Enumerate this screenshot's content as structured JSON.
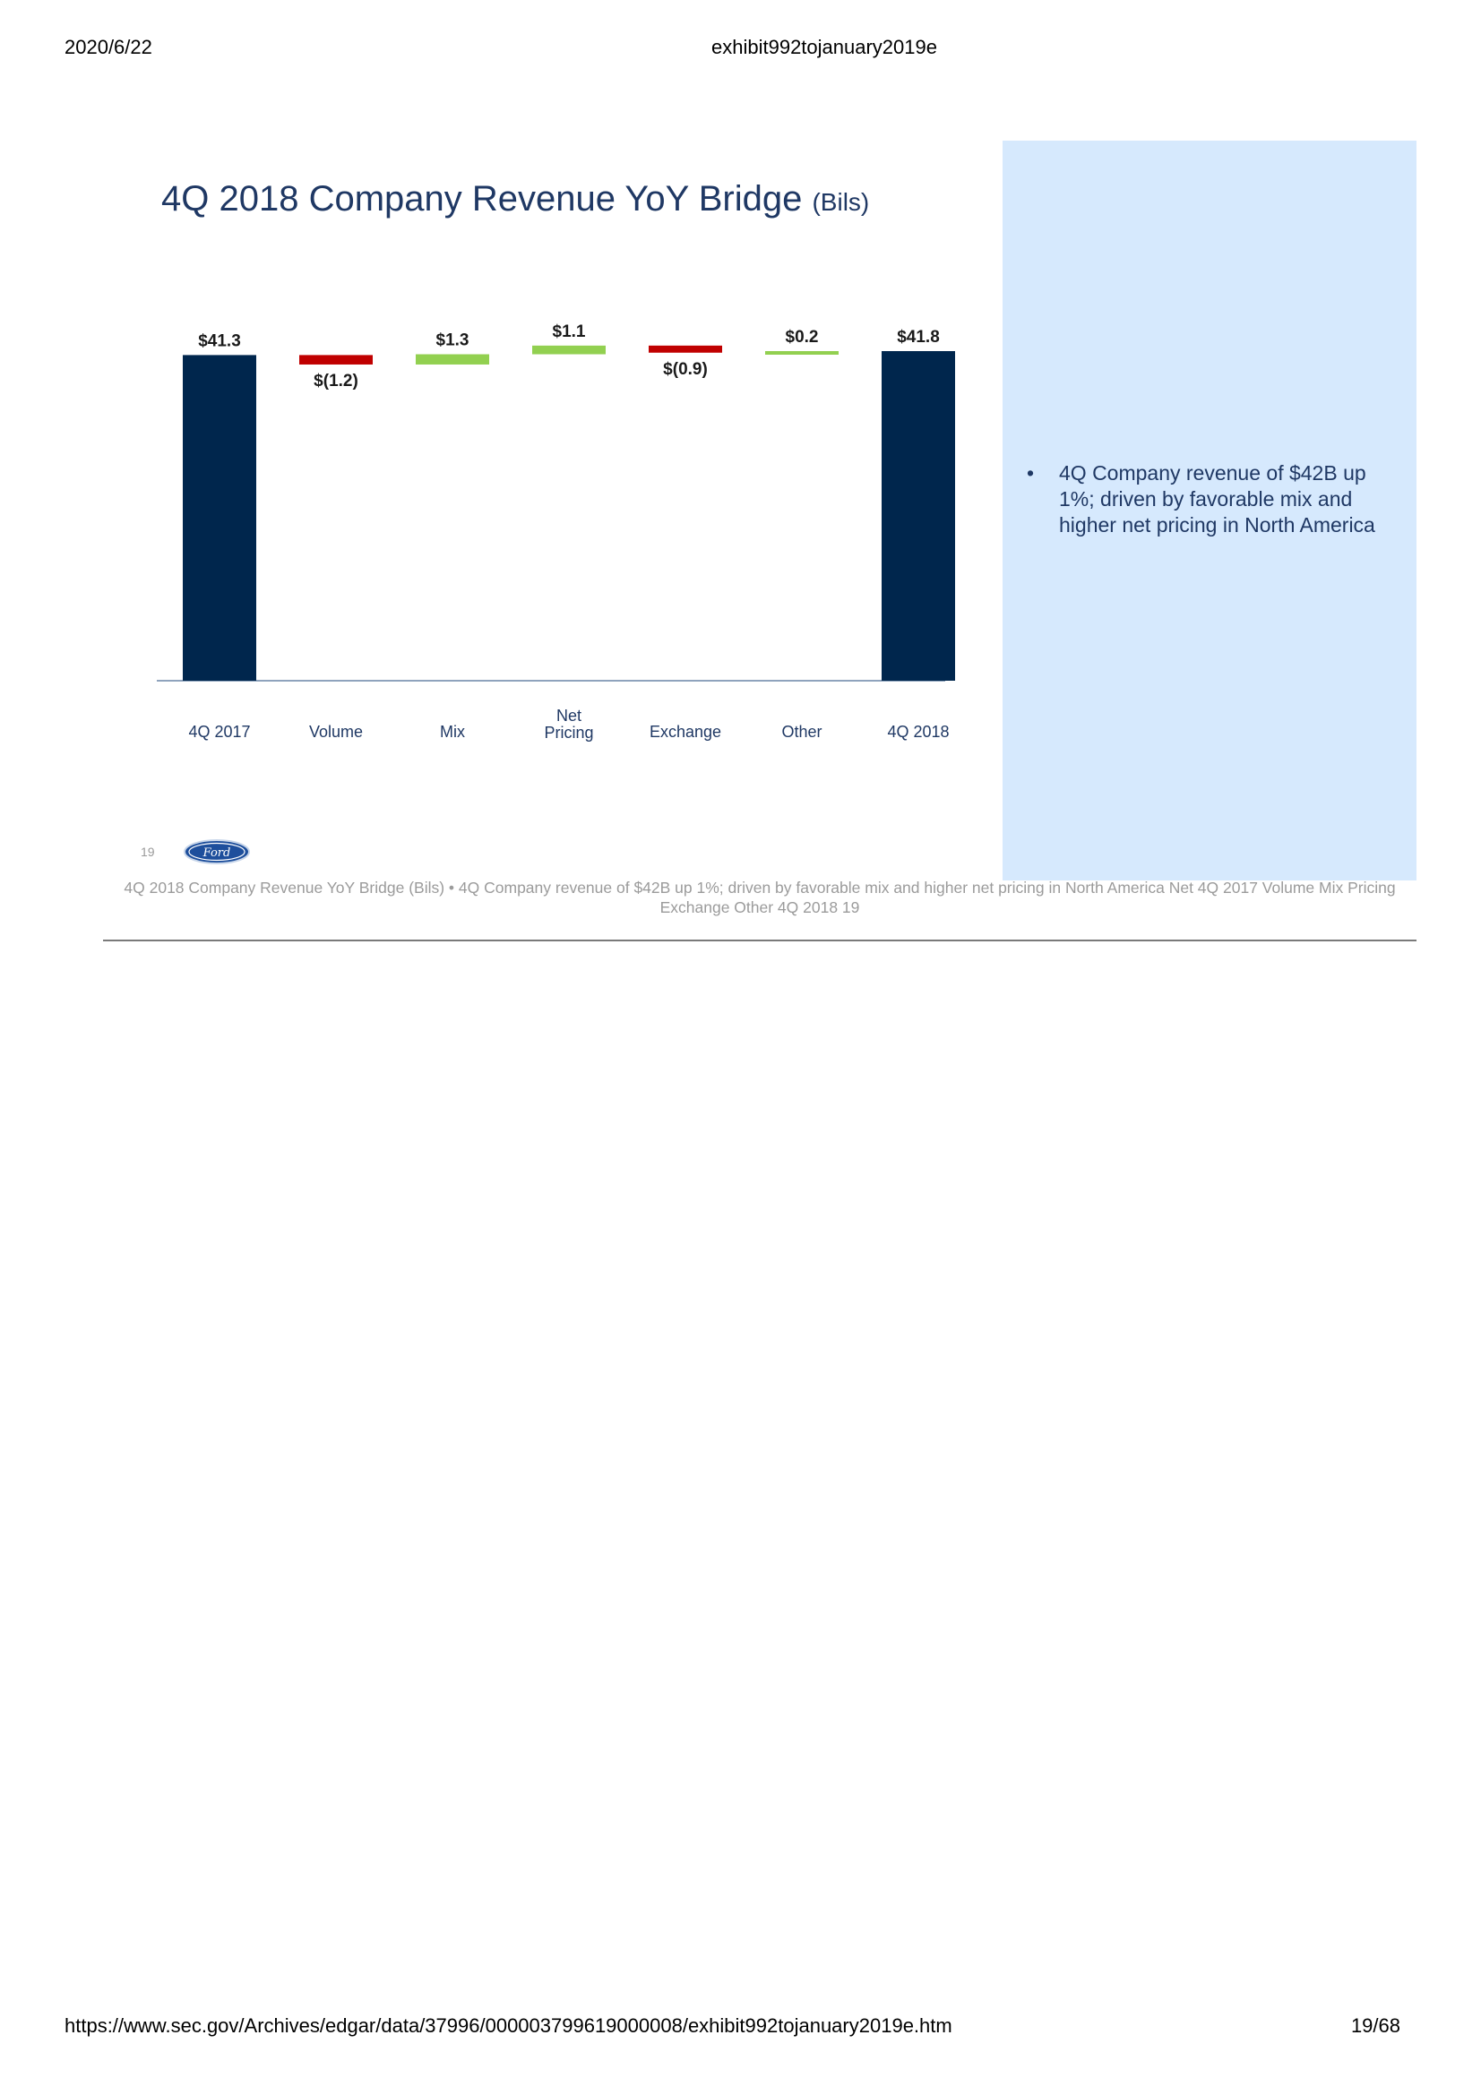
{
  "header": {
    "date": "2020/6/22",
    "title": "exhibit992tojanuary2019e"
  },
  "footer": {
    "url": "https://www.sec.gov/Archives/edgar/data/37996/000003799619000008/exhibit992tojanuary2019e.htm",
    "page": "19/68"
  },
  "slide": {
    "title": "4Q 2018 Company Revenue YoY Bridge",
    "title_unit": "(Bils)",
    "bullets": [
      "4Q Company revenue of $42B up 1%; driven by favorable mix and higher net pricing in North America"
    ],
    "slide_number": "19",
    "logo_text": "Ford"
  },
  "alt_text": "4Q 2018 Company Revenue YoY Bridge (Bils) • 4Q Company revenue of $42B up 1%; driven by favorable mix and higher net pricing in North America Net 4Q 2017 Volume Mix Pricing Exchange Other 4Q 2018 19",
  "colors": {
    "total": "#00264d",
    "negative": "#c00000",
    "positive": "#92d050",
    "title": "#1f3864",
    "panel": "#d6e9fd"
  },
  "chart_data": {
    "type": "waterfall",
    "title": "4Q 2018 Company Revenue YoY Bridge (Bils)",
    "categories": [
      [
        "4Q 2017"
      ],
      [
        "Volume"
      ],
      [
        "Mix"
      ],
      [
        "Net",
        "Pricing"
      ],
      [
        "Exchange"
      ],
      [
        "Other"
      ],
      [
        "4Q 2018"
      ]
    ],
    "values": [
      41.3,
      -1.2,
      1.3,
      1.1,
      -0.9,
      0.2,
      41.8
    ],
    "kinds": [
      "total",
      "negative",
      "positive",
      "positive",
      "negative",
      "positive",
      "total"
    ],
    "labels": [
      "$41.3",
      "$(1.2)",
      "$1.3",
      "$1.1",
      "$(0.9)",
      "$0.2",
      "$41.8"
    ]
  }
}
